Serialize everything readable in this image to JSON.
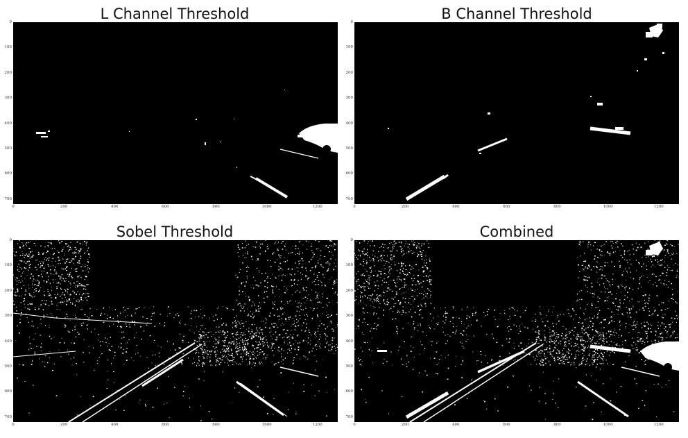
{
  "panels": [
    {
      "key": "l_channel",
      "title": "L Channel Threshold"
    },
    {
      "key": "b_channel",
      "title": "B Channel Threshold"
    },
    {
      "key": "sobel",
      "title": "Sobel Threshold"
    },
    {
      "key": "combined",
      "title": "Combined"
    }
  ],
  "axes": {
    "y_ticks": [
      "0",
      "100",
      "200",
      "300",
      "400",
      "500",
      "600",
      "700"
    ],
    "x_ticks": [
      "0",
      "200",
      "400",
      "600",
      "800",
      "1000",
      "1200"
    ]
  },
  "colors": {
    "background": "#000000",
    "mask": "#ffffff",
    "page": "#ffffff"
  }
}
